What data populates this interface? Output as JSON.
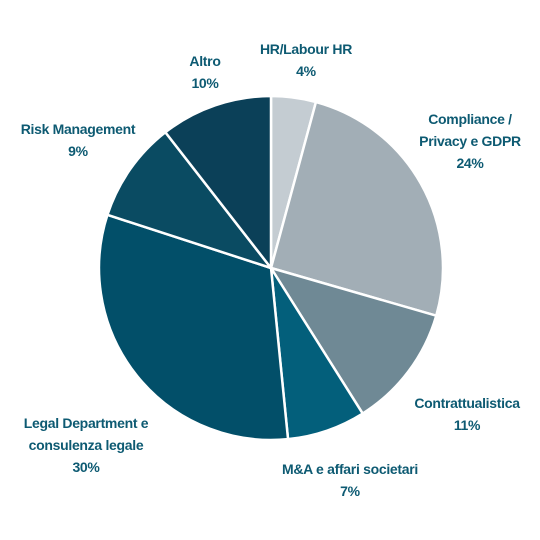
{
  "chart_data": {
    "type": "pie",
    "categories": [
      "HR/Labour HR",
      "Compliance / Privacy e GDPR",
      "Contrattualistica",
      "M&A e affari societari",
      "Legal Department e consulenza legale",
      "Risk Management",
      "Altro"
    ],
    "values": [
      4,
      24,
      11,
      7,
      30,
      9,
      10
    ],
    "value_labels": [
      "4%",
      "24%",
      "11%",
      "7%",
      "30%",
      "9%",
      "10%"
    ],
    "colors": [
      "#c4ccd2",
      "#a2aeb6",
      "#6f8995",
      "#035f7b",
      "#024f69",
      "#0a4b62",
      "#0b4058"
    ]
  }
}
